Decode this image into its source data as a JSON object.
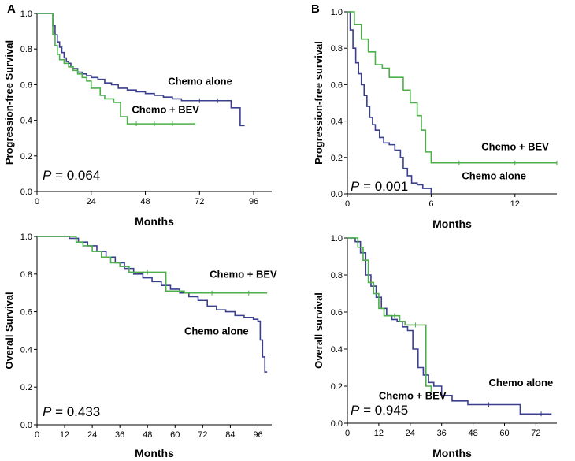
{
  "colors": {
    "chemo": "#3a3f8f",
    "bev": "#4caf4a",
    "axis": "#000000"
  },
  "chart_data": [
    {
      "id": "A-top",
      "type": "line",
      "panel_label": "A",
      "ylabel": "Progression-free Survival",
      "xlabel": "Months",
      "xlim": [
        0,
        104
      ],
      "ylim": [
        0,
        1.0
      ],
      "xticks": [
        0,
        24,
        48,
        72,
        96
      ],
      "yticks": [
        0.0,
        0.2,
        0.4,
        0.6,
        0.8,
        1.0
      ],
      "p_var": "P",
      "p_text": " = 0.064",
      "series": [
        {
          "name": "Chemo alone",
          "color": "#3a3f8f",
          "x": [
            0,
            6,
            7,
            8,
            9,
            10,
            11,
            12,
            13,
            14,
            15,
            16,
            18,
            20,
            22,
            24,
            27,
            30,
            33,
            36,
            40,
            44,
            48,
            52,
            56,
            60,
            64,
            68,
            72,
            76,
            80,
            84,
            86,
            88,
            90,
            92
          ],
          "y": [
            1.0,
            1.0,
            0.93,
            0.88,
            0.84,
            0.81,
            0.78,
            0.75,
            0.73,
            0.72,
            0.7,
            0.69,
            0.67,
            0.66,
            0.65,
            0.64,
            0.63,
            0.61,
            0.6,
            0.58,
            0.57,
            0.56,
            0.55,
            0.54,
            0.53,
            0.52,
            0.51,
            0.51,
            0.51,
            0.51,
            0.51,
            0.51,
            0.47,
            0.47,
            0.37,
            0.37
          ]
        },
        {
          "name": "Chemo + BEV",
          "color": "#4caf4a",
          "x": [
            0,
            6,
            7,
            8,
            9,
            10,
            12,
            14,
            16,
            18,
            20,
            22,
            24,
            28,
            30,
            34,
            37,
            40,
            44,
            48,
            52,
            56,
            60,
            65,
            70
          ],
          "y": [
            1.0,
            1.0,
            0.88,
            0.82,
            0.77,
            0.74,
            0.72,
            0.7,
            0.68,
            0.66,
            0.64,
            0.62,
            0.58,
            0.54,
            0.52,
            0.5,
            0.42,
            0.38,
            0.38,
            0.38,
            0.38,
            0.38,
            0.38,
            0.38,
            0.38
          ]
        }
      ],
      "annotations": [
        {
          "text": "Chemo alone",
          "x": 58,
          "y": 0.6
        },
        {
          "text": "Chemo + BEV",
          "x": 42,
          "y": 0.44
        }
      ]
    },
    {
      "id": "B-top",
      "type": "line",
      "panel_label": "B",
      "ylabel": "Progression-free survival",
      "xlabel": "Months",
      "xlim": [
        0,
        15
      ],
      "ylim": [
        0,
        1.0
      ],
      "xticks": [
        0,
        6,
        12
      ],
      "yticks": [
        0.0,
        0.2,
        0.4,
        0.6,
        0.8,
        1.0
      ],
      "p_var": "P",
      "p_text": " = 0.001",
      "series": [
        {
          "name": "Chemo alone",
          "color": "#3a3f8f",
          "x": [
            0,
            0.2,
            0.4,
            0.6,
            0.8,
            1.0,
            1.2,
            1.4,
            1.6,
            1.8,
            2.0,
            2.3,
            2.6,
            3.0,
            3.4,
            3.8,
            4.0,
            4.3,
            4.6,
            5.0,
            5.4,
            5.8,
            6.0
          ],
          "y": [
            1.0,
            0.9,
            0.8,
            0.72,
            0.66,
            0.6,
            0.54,
            0.48,
            0.42,
            0.38,
            0.35,
            0.31,
            0.28,
            0.27,
            0.24,
            0.2,
            0.14,
            0.1,
            0.06,
            0.05,
            0.03,
            0.03,
            0.0
          ]
        },
        {
          "name": "Chemo + BEV",
          "color": "#4caf4a",
          "x": [
            0,
            0.5,
            1.0,
            1.5,
            2.0,
            2.5,
            3.0,
            3.5,
            4.0,
            4.5,
            5.0,
            5.3,
            5.6,
            6.0,
            8,
            10,
            12,
            14,
            15
          ],
          "y": [
            1.0,
            0.93,
            0.85,
            0.78,
            0.71,
            0.69,
            0.64,
            0.64,
            0.57,
            0.5,
            0.43,
            0.35,
            0.23,
            0.17,
            0.17,
            0.17,
            0.17,
            0.17,
            0.17
          ]
        }
      ],
      "annotations": [
        {
          "text": "Chemo + BEV",
          "x": 9.6,
          "y": 0.24
        },
        {
          "text": "Chemo alone",
          "x": 8.2,
          "y": 0.08
        }
      ]
    },
    {
      "id": "A-bottom",
      "type": "line",
      "panel_label": "",
      "ylabel": "Overall Survival",
      "xlabel": "Months",
      "xlim": [
        0,
        102
      ],
      "ylim": [
        0,
        1.0
      ],
      "xticks": [
        0,
        12,
        24,
        36,
        48,
        60,
        72,
        84,
        96
      ],
      "yticks": [
        0.0,
        0.2,
        0.4,
        0.6,
        0.8,
        1.0
      ],
      "p_var": "P",
      "p_text": " = 0.433",
      "series": [
        {
          "name": "Chemo alone",
          "color": "#3a3f8f",
          "x": [
            0,
            10,
            14,
            18,
            22,
            26,
            30,
            34,
            38,
            42,
            46,
            50,
            54,
            58,
            62,
            66,
            70,
            74,
            78,
            82,
            86,
            90,
            94,
            96,
            97,
            98,
            99,
            100
          ],
          "y": [
            1.0,
            1.0,
            0.99,
            0.97,
            0.95,
            0.92,
            0.89,
            0.86,
            0.83,
            0.8,
            0.78,
            0.76,
            0.74,
            0.72,
            0.7,
            0.68,
            0.66,
            0.63,
            0.61,
            0.6,
            0.58,
            0.57,
            0.56,
            0.55,
            0.45,
            0.36,
            0.28,
            0.28
          ]
        },
        {
          "name": "Chemo + BEV",
          "color": "#4caf4a",
          "x": [
            0,
            14,
            17,
            20,
            24,
            28,
            32,
            36,
            40,
            44,
            48,
            52,
            56,
            60,
            64,
            70,
            76,
            84,
            92,
            100
          ],
          "y": [
            1.0,
            1.0,
            0.97,
            0.95,
            0.92,
            0.89,
            0.86,
            0.84,
            0.81,
            0.81,
            0.81,
            0.81,
            0.71,
            0.71,
            0.7,
            0.7,
            0.7,
            0.7,
            0.7,
            0.7
          ]
        }
      ],
      "annotations": [
        {
          "text": "Chemo + BEV",
          "x": 75,
          "y": 0.78
        },
        {
          "text": "Chemo alone",
          "x": 64,
          "y": 0.48
        }
      ]
    },
    {
      "id": "B-bottom",
      "type": "line",
      "panel_label": "",
      "ylabel": "Overall survival",
      "xlabel": "Months",
      "xlim": [
        0,
        80
      ],
      "ylim": [
        0,
        1.0
      ],
      "xticks": [
        0,
        12,
        24,
        36,
        48,
        60,
        72
      ],
      "yticks": [
        0.0,
        0.2,
        0.4,
        0.6,
        0.8,
        1.0
      ],
      "p_var": "P",
      "p_text": " = 0.945",
      "series": [
        {
          "name": "Chemo alone",
          "color": "#3a3f8f",
          "x": [
            0,
            3,
            5,
            7,
            9,
            11,
            13,
            15,
            17,
            19,
            21,
            23,
            25,
            27,
            29,
            31,
            33,
            36,
            40,
            46,
            54,
            60,
            66,
            70,
            74,
            78
          ],
          "y": [
            1.0,
            0.98,
            0.92,
            0.8,
            0.74,
            0.68,
            0.62,
            0.58,
            0.56,
            0.55,
            0.52,
            0.5,
            0.4,
            0.3,
            0.26,
            0.22,
            0.2,
            0.15,
            0.12,
            0.1,
            0.1,
            0.1,
            0.05,
            0.05,
            0.05,
            0.05
          ]
        },
        {
          "name": "Chemo + BEV",
          "color": "#4caf4a",
          "x": [
            0,
            4,
            6,
            8,
            10,
            12,
            14,
            16,
            18,
            20,
            22,
            24,
            26,
            28,
            30,
            32
          ],
          "y": [
            1.0,
            0.95,
            0.88,
            0.76,
            0.7,
            0.62,
            0.58,
            0.58,
            0.58,
            0.55,
            0.53,
            0.53,
            0.53,
            0.53,
            0.2,
            0.17
          ]
        }
      ],
      "annotations": [
        {
          "text": "Chemo alone",
          "x": 54,
          "y": 0.2
        },
        {
          "text": "Chemo + BEV",
          "x": 12,
          "y": 0.13
        }
      ]
    }
  ]
}
